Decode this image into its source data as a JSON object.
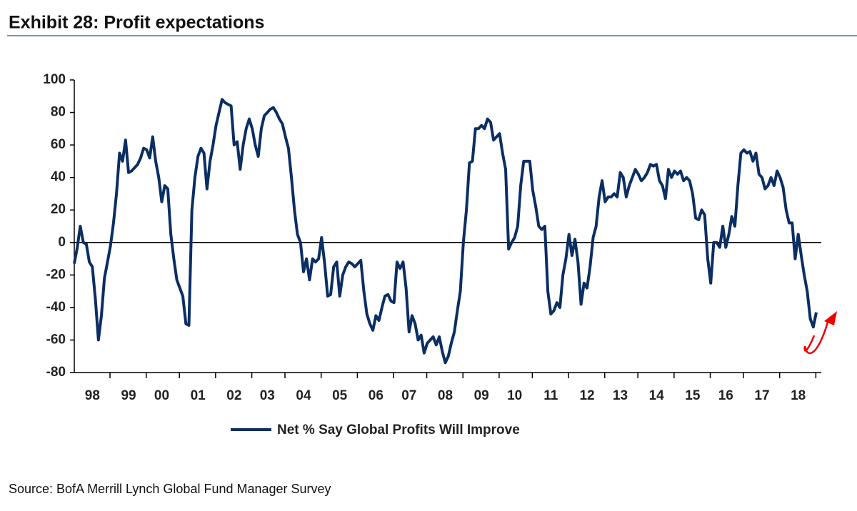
{
  "chart_data": {
    "type": "line",
    "title": "Exhibit 28: Profit expectations",
    "source": "Source: BofA Merrill Lynch Global Fund Manager Survey",
    "categories": [
      null,
      null,
      null,
      null,
      null,
      null,
      "98",
      null,
      null,
      null,
      null,
      null,
      null,
      null,
      null,
      null,
      null,
      null,
      "99",
      null,
      null,
      null,
      null,
      null,
      null,
      null,
      null,
      null,
      null,
      "00",
      null,
      null,
      null,
      null,
      null,
      null,
      null,
      null,
      null,
      null,
      null,
      "01",
      null,
      null,
      null,
      null,
      null,
      null,
      null,
      null,
      null,
      null,
      null,
      "02",
      null,
      null,
      null,
      null,
      null,
      null,
      null,
      null,
      null,
      null,
      "03",
      null,
      null,
      null,
      null,
      null,
      null,
      null,
      null,
      null,
      null,
      null,
      "04",
      null,
      null,
      null,
      null,
      null,
      null,
      null,
      null,
      null,
      null,
      null,
      "05",
      null,
      null,
      null,
      null,
      null,
      null,
      null,
      null,
      null,
      null,
      null,
      "06",
      null,
      null,
      null,
      null,
      null,
      null,
      null,
      null,
      null,
      null,
      "07",
      null,
      null,
      null,
      null,
      null,
      null,
      null,
      null,
      null,
      null,
      null,
      "08",
      null,
      null,
      null,
      null,
      null,
      null,
      null,
      null,
      null,
      null,
      null,
      "09",
      null,
      null,
      null,
      null,
      null,
      null,
      null,
      null,
      null,
      null,
      "10",
      null,
      null,
      null,
      null,
      null,
      null,
      null,
      null,
      null,
      null,
      null,
      "11",
      null,
      null,
      null,
      null,
      null,
      null,
      null,
      null,
      null,
      null,
      null,
      "12",
      null,
      null,
      null,
      null,
      null,
      null,
      null,
      null,
      null,
      null,
      "13",
      null,
      null,
      null,
      null,
      null,
      null,
      null,
      null,
      null,
      null,
      null,
      "14",
      null,
      null,
      null,
      null,
      null,
      null,
      null,
      null,
      null,
      null,
      null,
      "15",
      null,
      null,
      null,
      null,
      null,
      null,
      null,
      null,
      null,
      null,
      "16",
      null,
      null,
      null,
      null,
      null,
      null,
      null,
      null,
      null,
      null,
      null,
      "17",
      null,
      null,
      null,
      null,
      null,
      null,
      null,
      null,
      null,
      null,
      null,
      "18",
      null,
      null,
      null,
      null,
      null,
      null
    ],
    "series": [
      {
        "name": "Net % Say Global Profits Will Improve",
        "color": "#0b2e63",
        "values": [
          -13,
          -3,
          10,
          0,
          -1,
          -12,
          -15,
          -35,
          -60,
          -45,
          -22,
          -12,
          -2,
          12,
          30,
          55,
          50,
          63,
          43,
          44,
          46,
          48,
          52,
          58,
          57,
          52,
          65,
          50,
          40,
          25,
          35,
          33,
          5,
          -10,
          -23,
          -28,
          -33,
          -50,
          -51,
          20,
          40,
          53,
          58,
          55,
          33,
          50,
          60,
          72,
          80,
          88,
          86,
          85,
          84,
          60,
          62,
          45,
          60,
          70,
          76,
          70,
          60,
          53,
          70,
          78,
          80,
          82,
          83,
          80,
          76,
          73,
          65,
          58,
          40,
          20,
          5,
          0,
          -18,
          -10,
          -23,
          -10,
          -12,
          -10,
          3,
          -13,
          -33,
          -32,
          -15,
          -12,
          -33,
          -20,
          -15,
          -12,
          -13,
          -15,
          -13,
          -11,
          -30,
          -44,
          -50,
          -54,
          -45,
          -48,
          -40,
          -33,
          -32,
          -36,
          -37,
          -12,
          -16,
          -12,
          -28,
          -55,
          -45,
          -50,
          -60,
          -57,
          -68,
          -62,
          -60,
          -58,
          -63,
          -58,
          -67,
          -74,
          -70,
          -62,
          -55,
          -42,
          -30,
          0,
          20,
          49,
          50,
          70,
          70,
          72,
          70,
          76,
          74,
          63,
          65,
          67,
          55,
          45,
          -4,
          0,
          3,
          10,
          35,
          50,
          50,
          50,
          32,
          22,
          10,
          8,
          10,
          -30,
          -44,
          -42,
          -37,
          -40,
          -20,
          -10,
          5,
          -8,
          2,
          -12,
          -38,
          -25,
          -28,
          -15,
          3,
          10,
          28,
          38,
          25,
          28,
          28,
          30,
          28,
          43,
          40,
          28,
          35,
          40,
          45,
          42,
          38,
          40,
          43,
          48,
          47,
          48,
          38,
          35,
          27,
          45,
          40,
          44,
          42,
          44,
          38,
          40,
          38,
          30,
          15,
          14,
          20,
          17,
          -10,
          -25,
          0,
          0,
          -3,
          10,
          -3,
          5,
          16,
          10,
          35,
          55,
          57,
          55,
          56,
          50,
          55,
          42,
          40,
          33,
          35,
          40,
          35,
          44,
          40,
          34,
          20,
          12,
          12,
          -10,
          5,
          -8,
          -20,
          -30,
          -47,
          -52,
          -43
        ]
      }
    ],
    "ylim": [
      -80,
      100
    ],
    "yticks": [
      -80,
      -60,
      -40,
      -20,
      0,
      20,
      40,
      60,
      80,
      100
    ]
  }
}
